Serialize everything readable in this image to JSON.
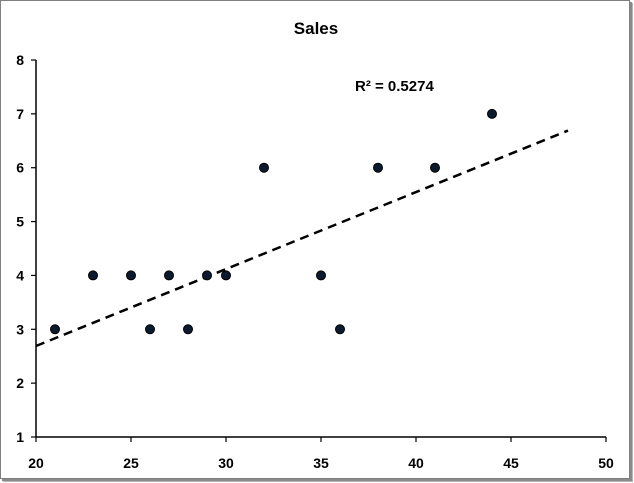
{
  "chart_data": {
    "type": "scatter",
    "title": "Sales",
    "xlabel": "",
    "ylabel": "",
    "xlim": [
      20,
      50
    ],
    "ylim": [
      1,
      8
    ],
    "x_ticks": [
      20,
      25,
      30,
      35,
      40,
      45,
      50
    ],
    "y_ticks": [
      1,
      2,
      3,
      4,
      5,
      6,
      7,
      8
    ],
    "grid": false,
    "legend": "none",
    "points": [
      {
        "x": 21,
        "y": 3
      },
      {
        "x": 23,
        "y": 4
      },
      {
        "x": 25,
        "y": 4
      },
      {
        "x": 26,
        "y": 3
      },
      {
        "x": 27,
        "y": 4
      },
      {
        "x": 28,
        "y": 3
      },
      {
        "x": 29,
        "y": 4
      },
      {
        "x": 30,
        "y": 4
      },
      {
        "x": 32,
        "y": 6
      },
      {
        "x": 35,
        "y": 4
      },
      {
        "x": 36,
        "y": 3
      },
      {
        "x": 38,
        "y": 6
      },
      {
        "x": 41,
        "y": 6
      },
      {
        "x": 44,
        "y": 7
      }
    ],
    "trendline": {
      "type": "linear",
      "style": "dashed",
      "x_start": 20,
      "y_start": 2.69,
      "x_end": 48,
      "y_end": 6.69
    },
    "annotation": "R² = 0.5274",
    "marker_color": "#0b1a2e",
    "line_color": "#000000"
  }
}
